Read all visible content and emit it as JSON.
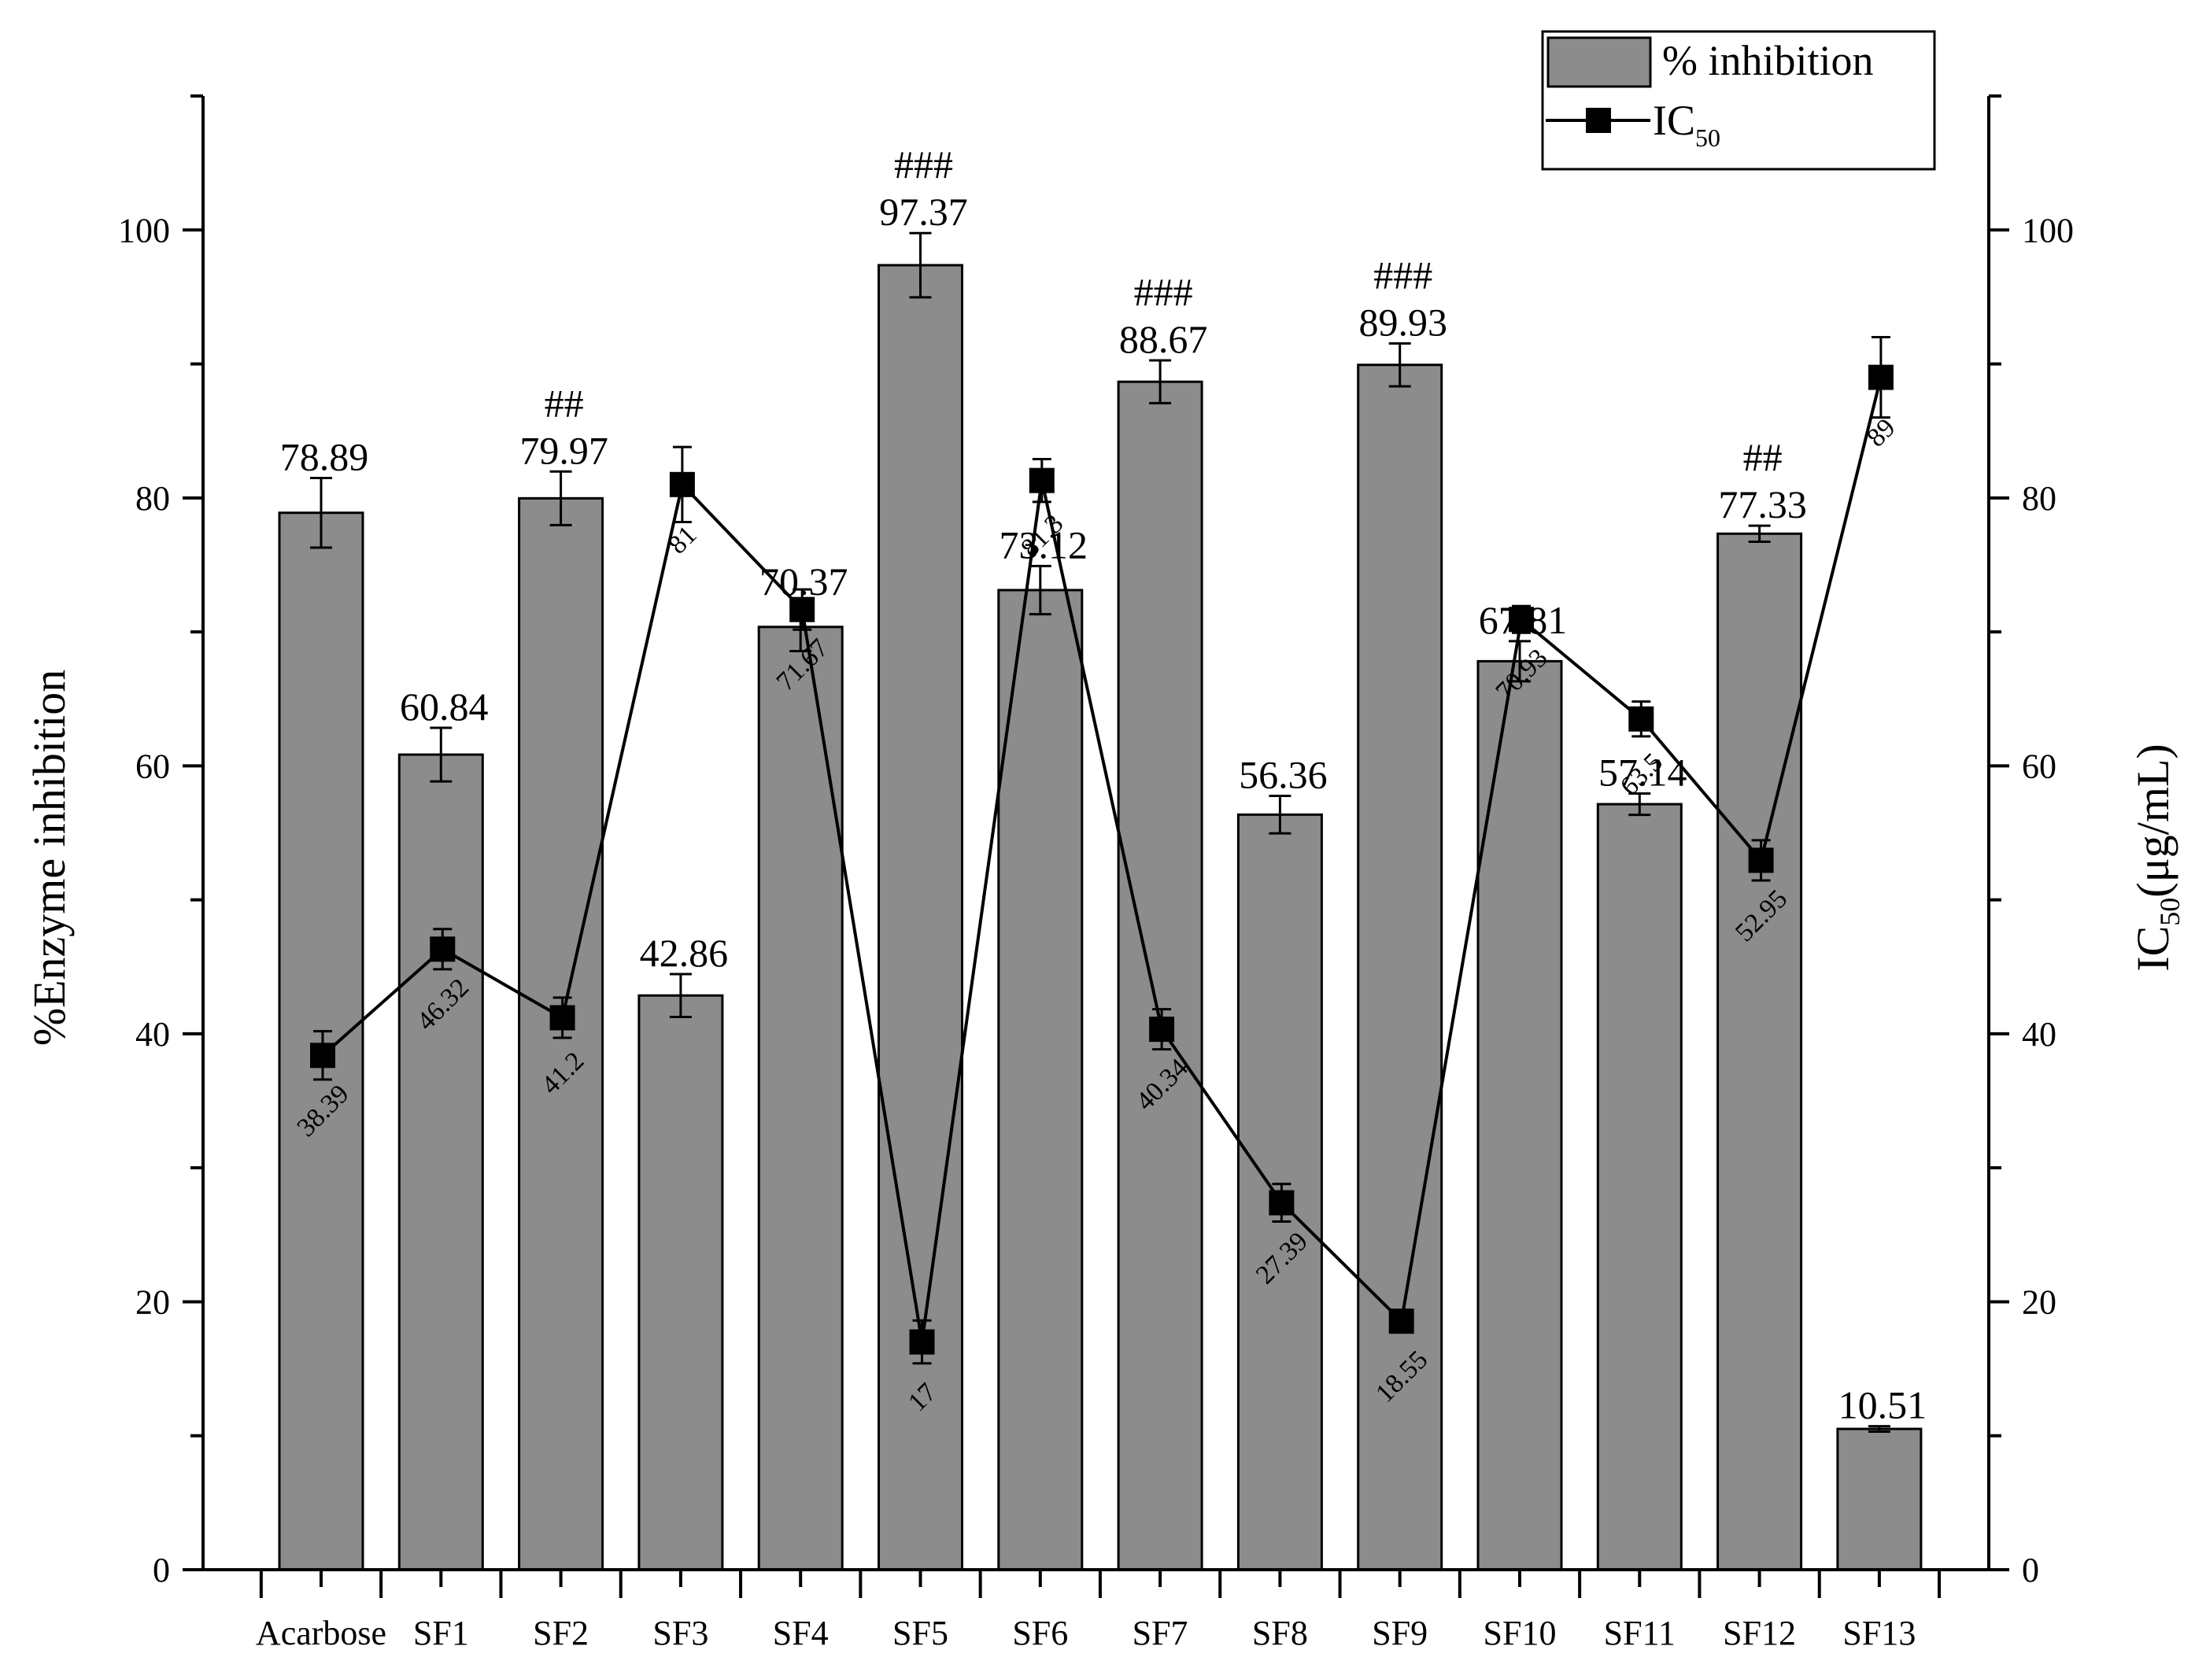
{
  "chart_data": {
    "type": "bar",
    "categories": [
      "Acarbose",
      "SF1",
      "SF2",
      "SF3",
      "SF4",
      "SF5",
      "SF6",
      "SF7",
      "SF8",
      "SF9",
      "SF10",
      "SF11",
      "SF12",
      "SF13"
    ],
    "series": [
      {
        "name": "% inhibition",
        "type": "bar",
        "axis": "left",
        "color": "#8c8c8c",
        "values": [
          78.89,
          60.84,
          79.97,
          42.86,
          70.37,
          97.37,
          73.12,
          88.67,
          56.36,
          89.93,
          67.81,
          57.14,
          77.33,
          10.51
        ],
        "labels": [
          "78.89",
          "60.84",
          "79.97",
          "42.86",
          "70.37",
          "97.37",
          "73.12",
          "88.67",
          "56.36",
          "89.93",
          "67.81",
          "57.14",
          "77.33",
          "10.51"
        ],
        "errors": [
          2.6,
          2.0,
          2.0,
          1.6,
          1.8,
          2.4,
          1.8,
          1.6,
          1.4,
          1.6,
          1.5,
          0.8,
          0.6,
          0.2
        ],
        "significance": [
          "",
          "",
          "##",
          "",
          "",
          "###",
          "",
          "###",
          "",
          "###",
          "",
          "",
          "##",
          ""
        ]
      },
      {
        "name": "IC",
        "name_sub": "50",
        "type": "line",
        "axis": "right",
        "color": "#000000",
        "values": [
          38.39,
          46.32,
          41.2,
          81,
          71.67,
          17,
          81.3,
          40.34,
          27.39,
          18.55,
          70.93,
          63.5,
          52.95,
          89
        ],
        "labels": [
          "38.39",
          "46.32",
          "41.2",
          "81",
          "71.67",
          "17",
          "81.3",
          "40.34",
          "27.39",
          "18.55",
          "70.93",
          "63.5",
          "52.95",
          "89"
        ],
        "errors": [
          1.8,
          1.5,
          1.5,
          2.8,
          1.5,
          1.6,
          1.6,
          1.5,
          1.4,
          0.8,
          1.0,
          1.3,
          1.5,
          3.0
        ]
      }
    ],
    "ylabel": "%Enzyme inhibition",
    "y2label_main": "IC",
    "y2label_sub": "50",
    "y2label_unit": "(μg/mL)",
    "ylim": [
      0,
      110
    ],
    "y2lim": [
      0,
      110
    ],
    "yticks": [
      0,
      20,
      40,
      60,
      80,
      100
    ],
    "y2ticks": [
      0,
      20,
      40,
      60,
      80,
      100
    ],
    "legend_position": "top-right",
    "grid": false
  }
}
